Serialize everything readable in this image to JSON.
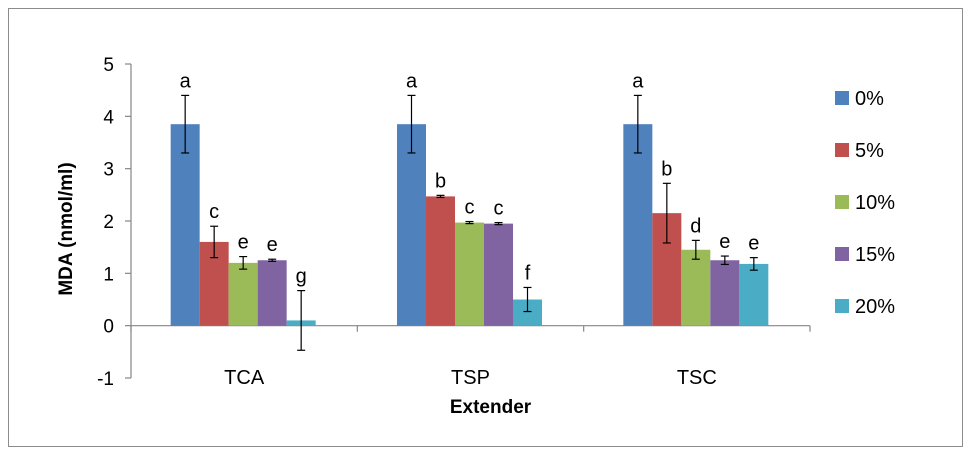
{
  "chart_data": {
    "type": "bar",
    "xlabel": "Extender",
    "ylabel": "MDA (nmol/ml)",
    "ylim": [
      -1,
      5
    ],
    "yticks": [
      5,
      4,
      3,
      2,
      1,
      0,
      -1
    ],
    "categories": [
      "TCA",
      "TSP",
      "TSC"
    ],
    "series": [
      {
        "name": "0%",
        "color": "#4f81bd",
        "values": [
          3.85,
          3.85,
          3.85
        ],
        "errors": [
          0.55,
          0.55,
          0.55
        ],
        "letters": [
          "a",
          "a",
          "a"
        ]
      },
      {
        "name": "5%",
        "color": "#c0504d",
        "values": [
          1.6,
          2.47,
          2.15
        ],
        "errors": [
          0.3,
          0.02,
          0.57
        ],
        "letters": [
          "c",
          "b",
          "b"
        ]
      },
      {
        "name": "10%",
        "color": "#9bbb59",
        "values": [
          1.2,
          1.97,
          1.45
        ],
        "errors": [
          0.12,
          0.02,
          0.18
        ],
        "letters": [
          "e",
          "c",
          "d"
        ]
      },
      {
        "name": "15%",
        "color": "#8064a2",
        "values": [
          1.25,
          1.95,
          1.25
        ],
        "errors": [
          0.02,
          0.02,
          0.08
        ],
        "letters": [
          "e",
          "c",
          "e"
        ]
      },
      {
        "name": "20%",
        "color": "#4bacc6",
        "values": [
          0.1,
          0.5,
          1.18
        ],
        "errors": [
          0.57,
          0.23,
          0.12
        ],
        "letters": [
          "g",
          "f",
          "e"
        ]
      }
    ],
    "legend_position": "right",
    "grid": false
  }
}
